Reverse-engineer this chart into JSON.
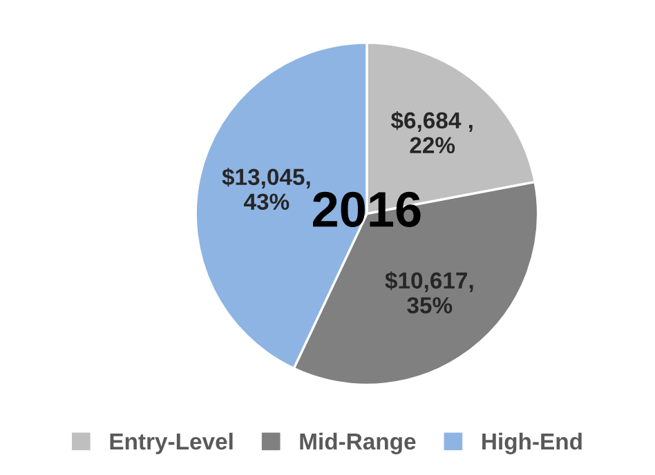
{
  "chart_data": {
    "type": "pie",
    "title": "2016",
    "categories": [
      "Entry-Level",
      "Mid-Range",
      "High-End"
    ],
    "values": [
      6684,
      10617,
      13045
    ],
    "colors": [
      "#bfbfbf",
      "#808080",
      "#8eb4e3"
    ],
    "value_labels": [
      "$6,684 ,\n22%",
      "$10,617,\n35%",
      "$13,045,\n43%"
    ],
    "legend": "bottom"
  }
}
